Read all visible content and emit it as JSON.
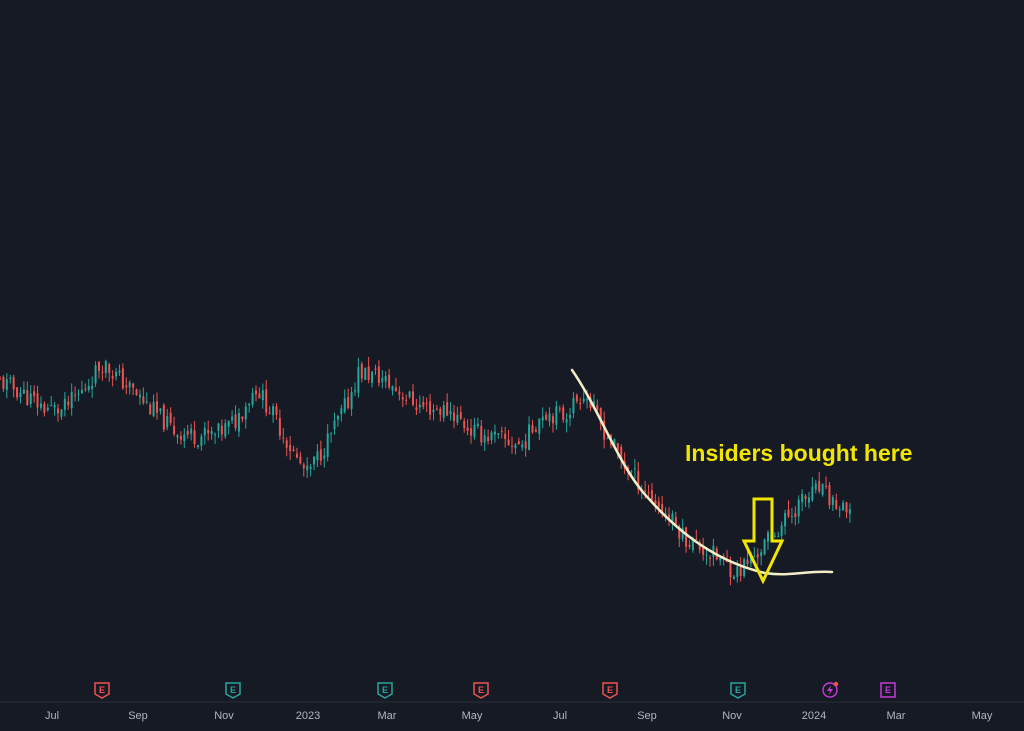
{
  "chart_data": {
    "type": "candlestick",
    "title": "",
    "xlabel": "",
    "ylabel": "",
    "grid": false,
    "x_tick_labels": [
      "Jul",
      "Sep",
      "Nov",
      "2023",
      "Mar",
      "May",
      "Jul",
      "Sep",
      "Nov",
      "2024",
      "Mar",
      "May"
    ],
    "x_range": [
      "2022-06",
      "2024-05"
    ],
    "up_color": "#26a69a",
    "down_color": "#ef5350",
    "close_path": [
      {
        "t": 0.0,
        "v": 0.58
      },
      {
        "t": 0.02,
        "v": 0.56
      },
      {
        "t": 0.04,
        "v": 0.53
      },
      {
        "t": 0.06,
        "v": 0.52
      },
      {
        "t": 0.08,
        "v": 0.56
      },
      {
        "t": 0.1,
        "v": 0.62
      },
      {
        "t": 0.12,
        "v": 0.58
      },
      {
        "t": 0.15,
        "v": 0.52
      },
      {
        "t": 0.17,
        "v": 0.48
      },
      {
        "t": 0.19,
        "v": 0.47
      },
      {
        "t": 0.21,
        "v": 0.47
      },
      {
        "t": 0.23,
        "v": 0.5
      },
      {
        "t": 0.25,
        "v": 0.57
      },
      {
        "t": 0.27,
        "v": 0.5
      },
      {
        "t": 0.29,
        "v": 0.42
      },
      {
        "t": 0.3,
        "v": 0.39
      },
      {
        "t": 0.32,
        "v": 0.46
      },
      {
        "t": 0.34,
        "v": 0.54
      },
      {
        "t": 0.35,
        "v": 0.6
      },
      {
        "t": 0.37,
        "v": 0.59
      },
      {
        "t": 0.39,
        "v": 0.56
      },
      {
        "t": 0.41,
        "v": 0.53
      },
      {
        "t": 0.44,
        "v": 0.52
      },
      {
        "t": 0.46,
        "v": 0.48
      },
      {
        "t": 0.49,
        "v": 0.46
      },
      {
        "t": 0.51,
        "v": 0.45
      },
      {
        "t": 0.53,
        "v": 0.52
      },
      {
        "t": 0.55,
        "v": 0.51
      },
      {
        "t": 0.57,
        "v": 0.56
      },
      {
        "t": 0.59,
        "v": 0.48
      },
      {
        "t": 0.61,
        "v": 0.41
      },
      {
        "t": 0.63,
        "v": 0.36
      },
      {
        "t": 0.65,
        "v": 0.31
      },
      {
        "t": 0.67,
        "v": 0.26
      },
      {
        "t": 0.7,
        "v": 0.22
      },
      {
        "t": 0.72,
        "v": 0.19
      },
      {
        "t": 0.74,
        "v": 0.23
      },
      {
        "t": 0.76,
        "v": 0.28
      },
      {
        "t": 0.78,
        "v": 0.33
      },
      {
        "t": 0.8,
        "v": 0.36
      },
      {
        "t": 0.815,
        "v": 0.33
      },
      {
        "t": 0.83,
        "v": 0.3
      }
    ],
    "events": [
      {
        "month": "2022-08",
        "type": "earnings",
        "result": "negative"
      },
      {
        "month": "2022-11",
        "type": "earnings",
        "result": "positive"
      },
      {
        "month": "2023-02",
        "type": "earnings",
        "result": "positive"
      },
      {
        "month": "2023-05",
        "type": "earnings",
        "result": "negative"
      },
      {
        "month": "2023-08",
        "type": "earnings",
        "result": "negative"
      },
      {
        "month": "2023-11",
        "type": "earnings",
        "result": "positive"
      },
      {
        "month": "2024-01",
        "type": "dividend"
      },
      {
        "month": "2024-02",
        "type": "earnings",
        "result": "upcoming"
      }
    ],
    "annotations": [
      {
        "text": "Insiders bought here",
        "color": "#f2e600"
      }
    ],
    "drawn_curve_color": "#f3eec8"
  }
}
